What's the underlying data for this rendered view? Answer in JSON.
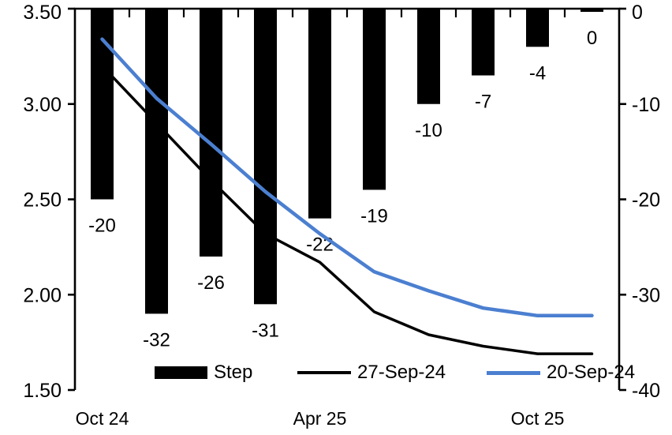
{
  "chart_data": {
    "type": "bar+line combo (policy-rate path with per-meeting steps)",
    "slots": 10,
    "x_axis": {
      "tick_labels": [
        {
          "label": "Oct 24",
          "slot": 0
        },
        {
          "label": "Apr 25",
          "slot": 4
        },
        {
          "label": "Oct 25",
          "slot": 8
        }
      ]
    },
    "left_axis": {
      "min": 1.5,
      "max": 3.5,
      "ticks": [
        {
          "label": "3.50",
          "value": 3.5
        },
        {
          "label": "3.00",
          "value": 3.0
        },
        {
          "label": "2.50",
          "value": 2.5
        },
        {
          "label": "2.00",
          "value": 2.0
        },
        {
          "label": "1.50",
          "value": 1.5
        }
      ]
    },
    "right_axis": {
      "min": -40,
      "max": 0,
      "ticks": [
        {
          "label": "0",
          "value": 0
        },
        {
          "label": "-10",
          "value": -10
        },
        {
          "label": "-20",
          "value": -20
        },
        {
          "label": "-30",
          "value": -30
        },
        {
          "label": "-40",
          "value": -40
        }
      ]
    },
    "bars": {
      "name": "Step",
      "axis": "right",
      "color": "#000000",
      "values": [
        -20,
        -32,
        -26,
        -31,
        -22,
        -19,
        -10,
        -7,
        -4,
        0
      ],
      "labels": [
        "-20",
        "-32",
        "-26",
        "-31",
        "-22",
        "-19",
        "-10",
        "-7",
        "-4",
        "0"
      ]
    },
    "lines": [
      {
        "name": "27-Sep-24",
        "axis": "left",
        "color": "#000000",
        "stroke_width": 3.5,
        "values": [
          3.2,
          2.9,
          2.6,
          2.32,
          2.17,
          1.91,
          1.79,
          1.73,
          1.69,
          1.69
        ]
      },
      {
        "name": "20-Sep-24",
        "axis": "left",
        "color": "#4b7fd0",
        "stroke_width": 4.5,
        "values": [
          3.34,
          3.03,
          2.79,
          2.54,
          2.32,
          2.12,
          2.02,
          1.93,
          1.89,
          1.89
        ]
      }
    ],
    "legend": [
      {
        "label": "Step",
        "type": "bar"
      },
      {
        "label": "27-Sep-24",
        "type": "line"
      },
      {
        "label": "20-Sep-24",
        "type": "line"
      }
    ],
    "text_color": "#000000",
    "background_color": "#ffffff"
  }
}
